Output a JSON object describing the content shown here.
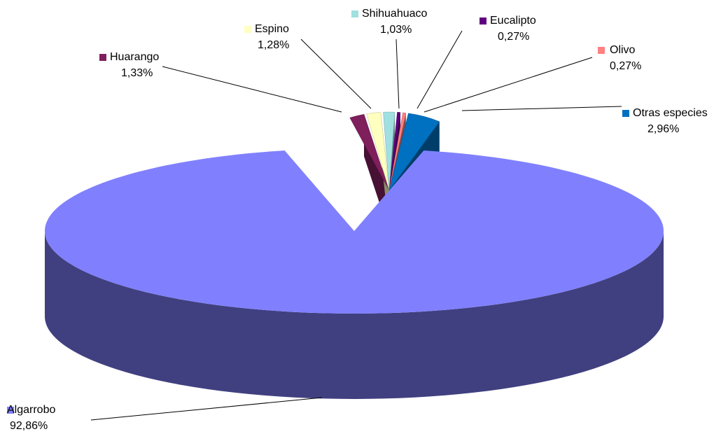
{
  "chart_data": {
    "type": "pie",
    "style": "3d-exploded",
    "title": "",
    "categories": [
      "Algarrobo",
      "Huarango",
      "Espino",
      "Shihuahuaco",
      "Eucalipto",
      "Olivo",
      "Otras especies"
    ],
    "values": [
      92.86,
      1.33,
      1.28,
      1.03,
      0.27,
      0.27,
      2.96
    ],
    "value_labels": [
      "92,86%",
      "1,33%",
      "1,28%",
      "1,03%",
      "0,27%",
      "0,27%",
      "2,96%"
    ],
    "colors": [
      "#8080FF",
      "#7F1F5C",
      "#FFFFC0",
      "#A0E0E0",
      "#600080",
      "#FF8080",
      "#0070C0"
    ],
    "legend": "labels-with-leader-lines"
  }
}
